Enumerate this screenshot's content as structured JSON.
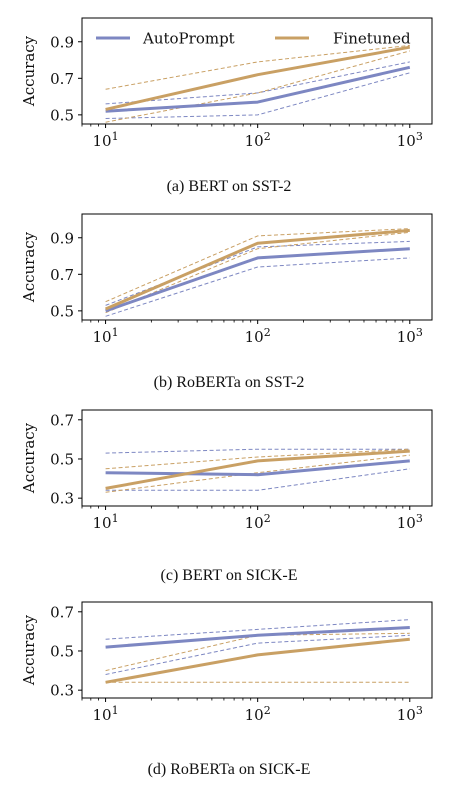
{
  "colors": {
    "autoprompt": "#7d87c2",
    "finetuned": "#c9a064",
    "axis": "#000000"
  },
  "legend": {
    "autoprompt": "AutoPrompt",
    "finetuned": "Finetuned"
  },
  "chart_data": [
    {
      "type": "line",
      "caption": "(a) BERT on SST-2",
      "ylabel": "Accuracy",
      "x_scale": "log",
      "x": [
        10,
        100,
        1000
      ],
      "xlim": [
        7,
        1400
      ],
      "x_ticks": [
        {
          "base": "10",
          "exp": "1"
        },
        {
          "base": "10",
          "exp": "2"
        },
        {
          "base": "10",
          "exp": "3"
        }
      ],
      "ylim": [
        0.45,
        1.03
      ],
      "y_ticks": [
        0.5,
        0.7,
        0.9
      ],
      "legend_shown": true,
      "legend_position": "top",
      "series": [
        {
          "name": "AutoPrompt",
          "values": [
            0.52,
            0.57,
            0.76
          ],
          "lower": [
            0.48,
            0.5,
            0.73
          ],
          "upper": [
            0.56,
            0.62,
            0.79
          ]
        },
        {
          "name": "Finetuned",
          "values": [
            0.53,
            0.72,
            0.87
          ],
          "lower": [
            0.46,
            0.62,
            0.85
          ],
          "upper": [
            0.64,
            0.79,
            0.88
          ]
        }
      ]
    },
    {
      "type": "line",
      "caption": "(b) RoBERTa on SST-2",
      "ylabel": "Accuracy",
      "x_scale": "log",
      "x": [
        10,
        100,
        1000
      ],
      "xlim": [
        7,
        1400
      ],
      "x_ticks": [
        {
          "base": "10",
          "exp": "1"
        },
        {
          "base": "10",
          "exp": "2"
        },
        {
          "base": "10",
          "exp": "3"
        }
      ],
      "ylim": [
        0.45,
        1.03
      ],
      "y_ticks": [
        0.5,
        0.7,
        0.9
      ],
      "legend_shown": false,
      "series": [
        {
          "name": "AutoPrompt",
          "values": [
            0.5,
            0.79,
            0.84
          ],
          "lower": [
            0.47,
            0.74,
            0.79
          ],
          "upper": [
            0.53,
            0.85,
            0.88
          ]
        },
        {
          "name": "Finetuned",
          "values": [
            0.51,
            0.87,
            0.94
          ],
          "lower": [
            0.49,
            0.84,
            0.93
          ],
          "upper": [
            0.55,
            0.91,
            0.95
          ]
        }
      ]
    },
    {
      "type": "line",
      "caption": "(c) BERT on SICK-E",
      "ylabel": "Accuracy",
      "x_scale": "log",
      "x": [
        10,
        100,
        1000
      ],
      "xlim": [
        7,
        1400
      ],
      "x_ticks": [
        {
          "base": "10",
          "exp": "1"
        },
        {
          "base": "10",
          "exp": "2"
        },
        {
          "base": "10",
          "exp": "3"
        }
      ],
      "ylim": [
        0.26,
        0.75
      ],
      "y_ticks": [
        0.3,
        0.5,
        0.7
      ],
      "legend_shown": false,
      "series": [
        {
          "name": "AutoPrompt",
          "values": [
            0.43,
            0.42,
            0.49
          ],
          "lower": [
            0.34,
            0.34,
            0.45
          ],
          "upper": [
            0.53,
            0.55,
            0.55
          ]
        },
        {
          "name": "Finetuned",
          "values": [
            0.35,
            0.49,
            0.54
          ],
          "lower": [
            0.33,
            0.43,
            0.52
          ],
          "upper": [
            0.45,
            0.51,
            0.55
          ]
        }
      ]
    },
    {
      "type": "line",
      "caption": "(d) RoBERTa on SICK-E",
      "ylabel": "Accuracy",
      "x_scale": "log",
      "x": [
        10,
        100,
        1000
      ],
      "xlim": [
        7,
        1400
      ],
      "x_ticks": [
        {
          "base": "10",
          "exp": "1"
        },
        {
          "base": "10",
          "exp": "2"
        },
        {
          "base": "10",
          "exp": "3"
        }
      ],
      "ylim": [
        0.26,
        0.75
      ],
      "y_ticks": [
        0.3,
        0.5,
        0.7
      ],
      "legend_shown": false,
      "series": [
        {
          "name": "AutoPrompt",
          "values": [
            0.52,
            0.58,
            0.62
          ],
          "lower": [
            0.38,
            0.54,
            0.58
          ],
          "upper": [
            0.56,
            0.61,
            0.66
          ]
        },
        {
          "name": "Finetuned",
          "values": [
            0.34,
            0.48,
            0.56
          ],
          "lower": [
            0.34,
            0.34,
            0.34
          ],
          "upper": [
            0.4,
            0.58,
            0.59
          ]
        }
      ]
    }
  ]
}
